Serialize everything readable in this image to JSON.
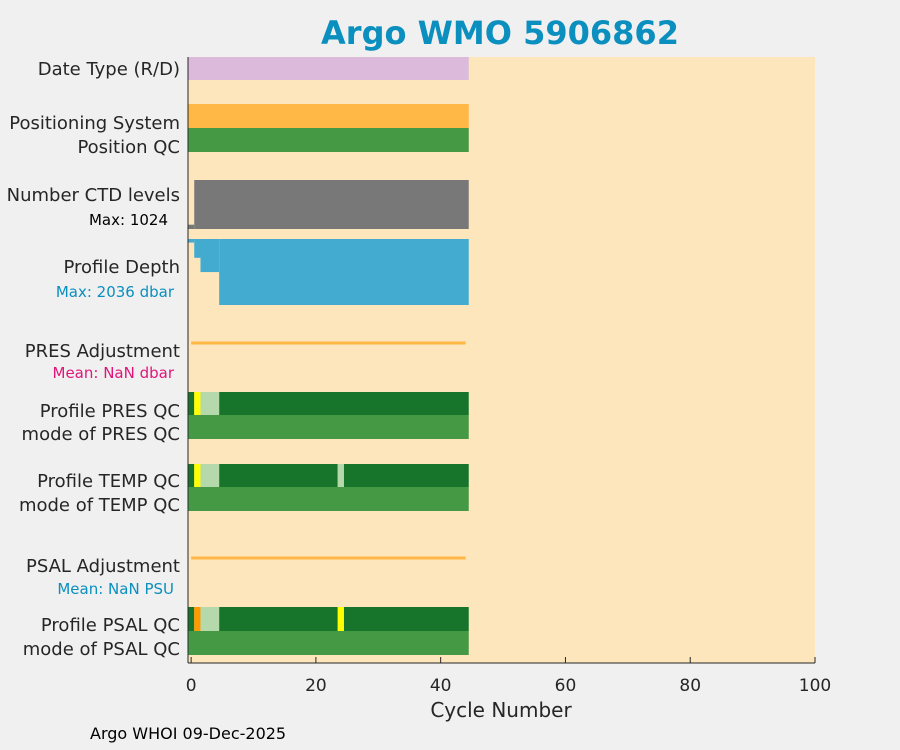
{
  "chart_data": {
    "type": "bar",
    "title": "Argo WMO 5906862",
    "xlabel": "Cycle Number",
    "xlim": [
      -0.5,
      100
    ],
    "xticks": [
      0,
      20,
      40,
      60,
      80,
      100
    ],
    "footer": "Argo WHOI 09-Dec-2025",
    "colors": {
      "background": "#fde6bc",
      "figure": "#f0f0f0",
      "title": "#0a8fbf",
      "date_type": "#dcbadb",
      "positioning": "#ffb845",
      "qc_dark": "#16752a",
      "qc_mid": "#459945",
      "qc_light": "#b5d9ab",
      "qc_yellow": "#ffff00",
      "qc_orange": "#ff9900",
      "ctd": "#787878",
      "depth": "#42abcf",
      "adjustment": "#ffb845",
      "pres_sub": "#e0157a",
      "psal_sub": "#0a8fbf"
    },
    "rows": [
      {
        "label": "Date Type (R/D)",
        "type": "solid",
        "color": "date_type",
        "start": -0.5,
        "end": 44.5
      },
      {
        "label": "Positioning System",
        "type": "solid",
        "color": "positioning",
        "start": -0.5,
        "end": 44.5
      },
      {
        "label": "Position QC",
        "type": "solid",
        "color": "qc_mid",
        "start": -0.5,
        "end": 44.5
      },
      {
        "label": "Number CTD levels",
        "sublabel": "Max: 1024",
        "subcolor": "#000000",
        "type": "ctd",
        "max": 1024,
        "cycle0_level": 90
      },
      {
        "label": "Profile Depth",
        "sublabel": "Max: 2036 dbar",
        "subcolor": "psal_sub",
        "type": "depth",
        "max_depth": 2036,
        "steps": [
          {
            "start": -0.5,
            "end": 0.5,
            "depth": 110
          },
          {
            "start": 0.5,
            "end": 1.5,
            "depth": 580
          },
          {
            "start": 1.5,
            "end": 4.5,
            "depth": 1020
          },
          {
            "start": 4.5,
            "end": 44.5,
            "depth": 2036
          }
        ]
      },
      {
        "label": "PRES Adjustment",
        "sublabel": "Mean:  NaN dbar",
        "subcolor": "pres_sub",
        "type": "line",
        "start": 0,
        "end": 44
      },
      {
        "label": "Profile PRES QC",
        "type": "segments",
        "segments": [
          {
            "start": -0.5,
            "end": 0.5,
            "color": "qc_dark"
          },
          {
            "start": 0.5,
            "end": 1.5,
            "color": "qc_yellow"
          },
          {
            "start": 1.5,
            "end": 4.5,
            "color": "qc_light"
          },
          {
            "start": 4.5,
            "end": 44.5,
            "color": "qc_dark"
          }
        ]
      },
      {
        "label": "mode of PRES QC",
        "type": "solid",
        "color": "qc_mid",
        "start": -0.5,
        "end": 44.5
      },
      {
        "label": "Profile TEMP QC",
        "type": "segments",
        "segments": [
          {
            "start": -0.5,
            "end": 0.5,
            "color": "qc_dark"
          },
          {
            "start": 0.5,
            "end": 1.5,
            "color": "qc_yellow"
          },
          {
            "start": 1.5,
            "end": 4.5,
            "color": "qc_light"
          },
          {
            "start": 4.5,
            "end": 23.5,
            "color": "qc_dark"
          },
          {
            "start": 23.5,
            "end": 24.5,
            "color": "qc_light"
          },
          {
            "start": 24.5,
            "end": 44.5,
            "color": "qc_dark"
          }
        ]
      },
      {
        "label": "mode of TEMP QC",
        "type": "solid",
        "color": "qc_mid",
        "start": -0.5,
        "end": 44.5
      },
      {
        "label": "PSAL Adjustment",
        "sublabel": "Mean:  NaN PSU",
        "subcolor": "psal_sub",
        "type": "line",
        "start": 0,
        "end": 44
      },
      {
        "label": "Profile PSAL QC",
        "type": "segments",
        "segments": [
          {
            "start": -0.5,
            "end": 0.5,
            "color": "qc_dark"
          },
          {
            "start": 0.5,
            "end": 1.5,
            "color": "qc_orange"
          },
          {
            "start": 1.5,
            "end": 4.5,
            "color": "qc_light"
          },
          {
            "start": 4.5,
            "end": 23.5,
            "color": "qc_dark"
          },
          {
            "start": 23.5,
            "end": 24.5,
            "color": "qc_yellow"
          },
          {
            "start": 24.5,
            "end": 44.5,
            "color": "qc_dark"
          }
        ]
      },
      {
        "label": "mode of PSAL QC",
        "type": "solid",
        "color": "qc_mid",
        "start": -0.5,
        "end": 44.5
      }
    ]
  }
}
